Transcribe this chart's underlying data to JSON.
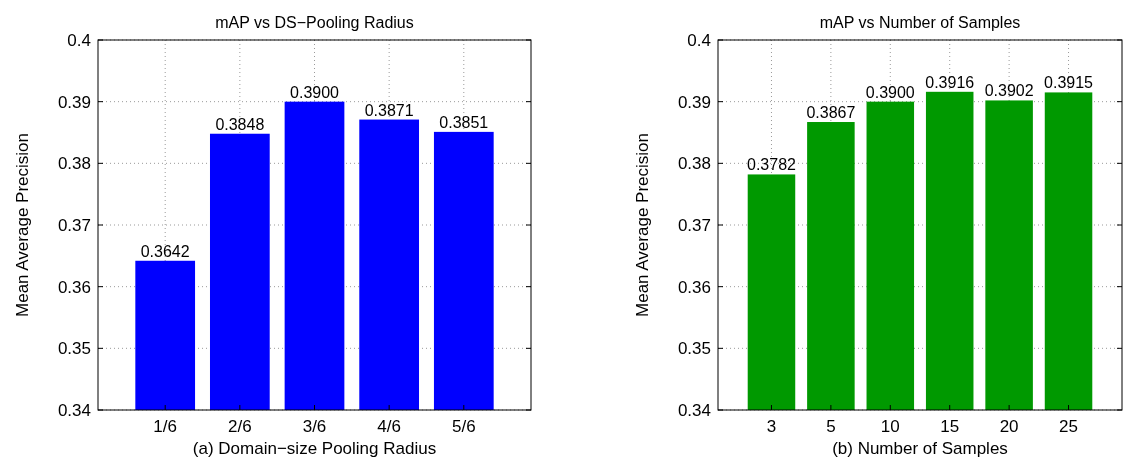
{
  "chart_data": [
    {
      "type": "bar",
      "title": "mAP vs DS−Pooling Radius",
      "xlabel": "(a) Domain−size Pooling Radius",
      "ylabel": "Mean Average Precision",
      "categories": [
        "1/6",
        "2/6",
        "3/6",
        "4/6",
        "5/6"
      ],
      "values": [
        0.3642,
        0.3848,
        0.39,
        0.3871,
        0.3851
      ],
      "value_labels": [
        "0.3642",
        "0.3848",
        "0.3900",
        "0.3871",
        "0.3851"
      ],
      "color": "#0000ff",
      "ylim": [
        0.34,
        0.4
      ],
      "yticks": [
        0.34,
        0.35,
        0.36,
        0.37,
        0.38,
        0.39,
        0.4
      ],
      "grid": true
    },
    {
      "type": "bar",
      "title": "mAP vs Number of Samples",
      "xlabel": "(b) Number of Samples",
      "ylabel": "Mean Average Precision",
      "categories": [
        "3",
        "5",
        "10",
        "15",
        "20",
        "25"
      ],
      "values": [
        0.3782,
        0.3867,
        0.39,
        0.3916,
        0.3902,
        0.3915
      ],
      "value_labels": [
        "0.3782",
        "0.3867",
        "0.3900",
        "0.3916",
        "0.3902",
        "0.3915"
      ],
      "color": "#009900",
      "ylim": [
        0.34,
        0.4
      ],
      "yticks": [
        0.34,
        0.35,
        0.36,
        0.37,
        0.38,
        0.39,
        0.4
      ],
      "grid": true
    }
  ]
}
